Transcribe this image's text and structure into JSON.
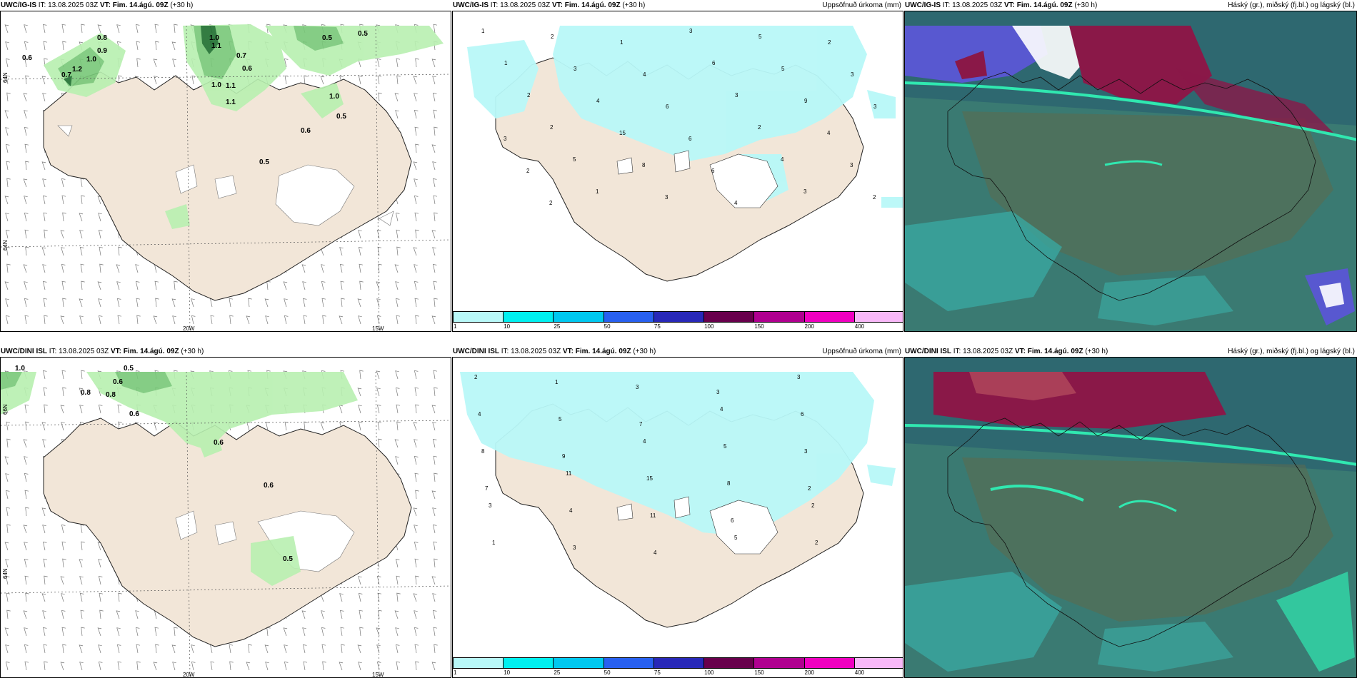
{
  "panels": {
    "p1": {
      "model": "UWC/IG-IS",
      "it": "IT: 13.08.2025 03Z",
      "vt_label": "VT:",
      "vt": "Fim. 14.ágú. 09Z",
      "lead": "(+30 h)",
      "right": ""
    },
    "p2": {
      "model": "UWC/IG-IS",
      "it": "IT: 13.08.2025 03Z",
      "vt_label": "VT:",
      "vt": "Fim. 14.ágú. 09Z",
      "lead": "(+30 h)",
      "right": "Uppsöfnuð úrkoma (mm)"
    },
    "p3": {
      "model": "UWC/IG-IS",
      "it": "IT: 13.08.2025 03Z",
      "vt_label": "VT:",
      "vt": "Fim. 14.ágú. 09Z",
      "lead": "(+30 h)",
      "right": "Háský (gr.), miðský (fj.bl.) og lágský (bl.)"
    },
    "p4": {
      "model": "UWC/DINI ISL",
      "it": "IT: 13.08.2025 03Z",
      "vt_label": "VT:",
      "vt": "Fim. 14.ágú. 09Z",
      "lead": "(+30 h)",
      "right": ""
    },
    "p5": {
      "model": "UWC/DINI ISL",
      "it": "IT: 13.08.2025 03Z",
      "vt_label": "VT:",
      "vt": "Fim. 14.ágú. 09Z",
      "lead": "(+30 h)",
      "right": "Uppsöfnuð úrkoma (mm)"
    },
    "p6": {
      "model": "UWC/DINI ISL",
      "it": "IT: 13.08.2025 03Z",
      "vt_label": "VT:",
      "vt": "Fim. 14.ágú. 09Z",
      "lead": "(+30 h)",
      "right": "Háský (gr.), miðský (fj.bl.) og lágský (bl.)"
    }
  },
  "axes": {
    "lon_a": "20W",
    "lon_b": "15W",
    "lat_a": "66N",
    "lat_b": "64N"
  },
  "gust_labels_top": [
    "0.8",
    "0.9",
    "1.0",
    "0.6",
    "1.2",
    "0.7",
    "1.0",
    "1.1",
    "0.7",
    "0.6",
    "1.0",
    "1.1",
    "1.1",
    "0.5",
    "0.5",
    "1.0",
    "0.5",
    "0.6",
    "0.5"
  ],
  "gust_labels_bottom": [
    "1.0",
    "0.5",
    "0.6",
    "0.8",
    "0.8",
    "0.6",
    "0.6",
    "0.6",
    "0.5"
  ],
  "precip_values_top": [
    "1",
    "2",
    "1",
    "3",
    "5",
    "2",
    "1",
    "3",
    "4",
    "6",
    "5",
    "3",
    "2",
    "4",
    "6",
    "3",
    "9",
    "3",
    "2",
    "15",
    "6",
    "2",
    "4",
    "3",
    "5",
    "8",
    "6",
    "4",
    "3",
    "2",
    "1",
    "3",
    "4",
    "3",
    "2",
    "2"
  ],
  "precip_values_bottom": [
    "2",
    "1",
    "3",
    "3",
    "3",
    "4",
    "5",
    "7",
    "4",
    "6",
    "8",
    "9",
    "4",
    "5",
    "3",
    "7",
    "11",
    "15",
    "8",
    "2",
    "3",
    "4",
    "11",
    "6",
    "2",
    "1",
    "3",
    "4",
    "5",
    "2"
  ],
  "colorbar": {
    "ticks": [
      "1",
      "10",
      "25",
      "50",
      "75",
      "100",
      "150",
      "200",
      "400"
    ],
    "colors": [
      "#b8f8f8",
      "#00f0f0",
      "#00c8f0",
      "#2860f0",
      "#2828b8",
      "#68004c",
      "#b00090",
      "#f000c0",
      "#f8b8f8"
    ]
  },
  "colors": {
    "land": "#f2e6d8",
    "precip_light": "#b8f8f8",
    "green_light": "#b8f0b0",
    "green_mid": "#78c878",
    "green_dark": "#1e6e2e",
    "cloud_base": "#2e6870",
    "cloud_teal": "#3aa8a0",
    "cloud_red": "#8a1848",
    "cloud_blue": "#5858d0"
  }
}
